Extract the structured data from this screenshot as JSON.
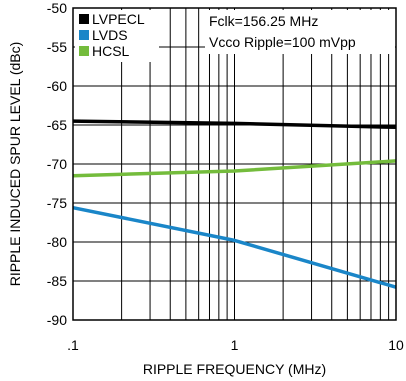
{
  "chart_data": {
    "type": "line",
    "x_scale": "log",
    "xlim": [
      0.1,
      10
    ],
    "ylim": [
      -90,
      -50
    ],
    "xlabel": "RIPPLE FREQUENCY (MHz)",
    "ylabel": "RIPPLE INDUCED SPUR LEVEL (dBc)",
    "x_ticks": [
      ".1",
      "1",
      "10"
    ],
    "y_ticks": [
      "-50",
      "-55",
      "-60",
      "-65",
      "-70",
      "-75",
      "-80",
      "-85",
      "-90"
    ],
    "grid": true,
    "legend_position": "top-left",
    "annotations": [
      "Fclk=156.25 MHz",
      "Vcco Ripple=100 mVpp"
    ],
    "series": [
      {
        "name": "LVPECL",
        "color": "#000000",
        "points": [
          [
            0.1,
            -64.5
          ],
          [
            1,
            -64.8
          ],
          [
            10,
            -65.3
          ]
        ]
      },
      {
        "name": "LVDS",
        "color": "#1a86c8",
        "points": [
          [
            0.1,
            -75.6
          ],
          [
            1,
            -79.8
          ],
          [
            10,
            -85.8
          ]
        ]
      },
      {
        "name": "HCSL",
        "color": "#74bc3c",
        "points": [
          [
            0.1,
            -71.5
          ],
          [
            1,
            -70.9
          ],
          [
            10,
            -69.6
          ]
        ]
      }
    ]
  }
}
